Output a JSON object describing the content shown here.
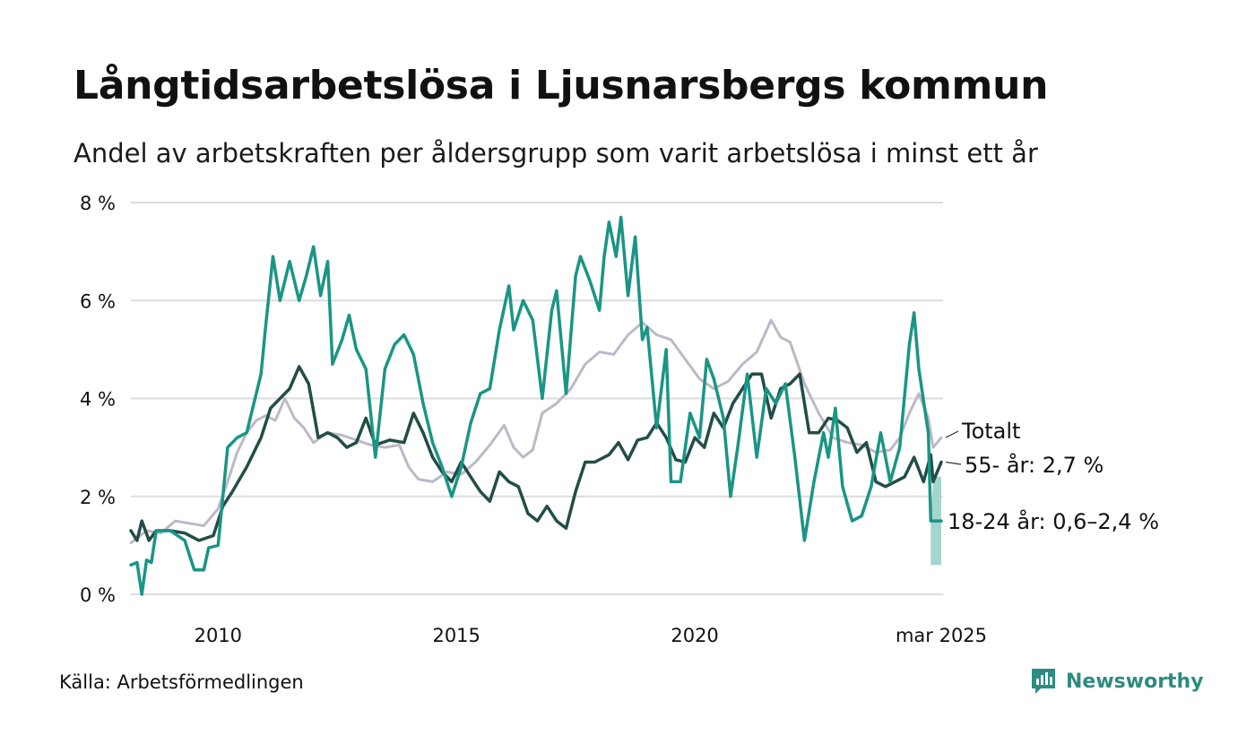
{
  "title": "Långtidsarbetslösa i Ljusnarsbergs kommun",
  "subtitle": "Andel av arbetskraften per åldersgrupp som varit arbetslösa i minst ett år",
  "source": "Källa: Arbetsförmedlingen",
  "brand": {
    "name": "Newsworthy",
    "color": "#2e8b7f",
    "icon": "newsworthy-bar-chart-icon"
  },
  "chart_data": {
    "type": "line",
    "y_range": [
      0,
      8
    ],
    "y_ticks": [
      0,
      2,
      4,
      6,
      8
    ],
    "y_tick_labels": [
      "0 %",
      "2 %",
      "4 %",
      "6 %",
      "8 %"
    ],
    "x_range": [
      2008.17,
      2025.17
    ],
    "x_ticks": [
      2010,
      2015,
      2020,
      2025.17
    ],
    "x_tick_labels": [
      "2010",
      "2015",
      "2020",
      "mar 2025"
    ],
    "grid": "horizontal",
    "series": [
      {
        "name": "Totalt",
        "label": "Totalt",
        "color": "#bdb8c9",
        "width": 3,
        "points": [
          [
            2008.17,
            1.05
          ],
          [
            2008.5,
            1.3
          ],
          [
            2008.8,
            1.25
          ],
          [
            2009.1,
            1.5
          ],
          [
            2009.4,
            1.45
          ],
          [
            2009.7,
            1.4
          ],
          [
            2010.0,
            1.75
          ],
          [
            2010.2,
            2.3
          ],
          [
            2010.4,
            2.9
          ],
          [
            2010.6,
            3.3
          ],
          [
            2010.8,
            3.55
          ],
          [
            2011.0,
            3.65
          ],
          [
            2011.2,
            3.55
          ],
          [
            2011.4,
            4.0
          ],
          [
            2011.6,
            3.6
          ],
          [
            2011.8,
            3.4
          ],
          [
            2012.0,
            3.1
          ],
          [
            2012.3,
            3.3
          ],
          [
            2012.6,
            3.25
          ],
          [
            2012.9,
            3.15
          ],
          [
            2013.2,
            3.05
          ],
          [
            2013.5,
            3.0
          ],
          [
            2013.8,
            3.05
          ],
          [
            2014.0,
            2.6
          ],
          [
            2014.2,
            2.35
          ],
          [
            2014.5,
            2.3
          ],
          [
            2014.8,
            2.5
          ],
          [
            2015.1,
            2.45
          ],
          [
            2015.4,
            2.7
          ],
          [
            2015.7,
            3.05
          ],
          [
            2016.0,
            3.45
          ],
          [
            2016.2,
            3.0
          ],
          [
            2016.4,
            2.8
          ],
          [
            2016.6,
            2.95
          ],
          [
            2016.8,
            3.7
          ],
          [
            2017.1,
            3.9
          ],
          [
            2017.4,
            4.2
          ],
          [
            2017.7,
            4.7
          ],
          [
            2018.0,
            4.95
          ],
          [
            2018.3,
            4.9
          ],
          [
            2018.6,
            5.3
          ],
          [
            2018.9,
            5.55
          ],
          [
            2019.2,
            5.3
          ],
          [
            2019.5,
            5.2
          ],
          [
            2019.8,
            4.8
          ],
          [
            2020.1,
            4.4
          ],
          [
            2020.4,
            4.2
          ],
          [
            2020.7,
            4.35
          ],
          [
            2021.0,
            4.7
          ],
          [
            2021.3,
            4.95
          ],
          [
            2021.6,
            5.6
          ],
          [
            2021.8,
            5.25
          ],
          [
            2022.0,
            5.15
          ],
          [
            2022.3,
            4.3
          ],
          [
            2022.6,
            3.7
          ],
          [
            2022.9,
            3.2
          ],
          [
            2023.2,
            3.1
          ],
          [
            2023.5,
            3.05
          ],
          [
            2023.8,
            2.9
          ],
          [
            2024.1,
            2.95
          ],
          [
            2024.3,
            3.2
          ],
          [
            2024.5,
            3.7
          ],
          [
            2024.7,
            4.1
          ],
          [
            2024.9,
            3.6
          ],
          [
            2025.0,
            3.0
          ],
          [
            2025.17,
            3.2
          ]
        ]
      },
      {
        "name": "55- år",
        "label": "55- år: 2,7 %",
        "color": "#234d47",
        "width": 3.5,
        "points": [
          [
            2008.17,
            1.3
          ],
          [
            2008.3,
            1.1
          ],
          [
            2008.4,
            1.5
          ],
          [
            2008.55,
            1.1
          ],
          [
            2008.7,
            1.3
          ],
          [
            2009.0,
            1.3
          ],
          [
            2009.3,
            1.25
          ],
          [
            2009.6,
            1.1
          ],
          [
            2009.9,
            1.2
          ],
          [
            2010.1,
            1.8
          ],
          [
            2010.3,
            2.1
          ],
          [
            2010.6,
            2.6
          ],
          [
            2010.9,
            3.2
          ],
          [
            2011.1,
            3.8
          ],
          [
            2011.3,
            4.0
          ],
          [
            2011.5,
            4.2
          ],
          [
            2011.7,
            4.65
          ],
          [
            2011.9,
            4.3
          ],
          [
            2012.1,
            3.2
          ],
          [
            2012.3,
            3.3
          ],
          [
            2012.5,
            3.2
          ],
          [
            2012.7,
            3.0
          ],
          [
            2012.9,
            3.1
          ],
          [
            2013.1,
            3.6
          ],
          [
            2013.3,
            3.05
          ],
          [
            2013.6,
            3.15
          ],
          [
            2013.9,
            3.1
          ],
          [
            2014.1,
            3.7
          ],
          [
            2014.3,
            3.3
          ],
          [
            2014.5,
            2.8
          ],
          [
            2014.7,
            2.5
          ],
          [
            2014.9,
            2.3
          ],
          [
            2015.1,
            2.7
          ],
          [
            2015.3,
            2.4
          ],
          [
            2015.5,
            2.1
          ],
          [
            2015.7,
            1.9
          ],
          [
            2015.9,
            2.5
          ],
          [
            2016.1,
            2.3
          ],
          [
            2016.3,
            2.2
          ],
          [
            2016.5,
            1.65
          ],
          [
            2016.7,
            1.5
          ],
          [
            2016.9,
            1.8
          ],
          [
            2017.1,
            1.5
          ],
          [
            2017.3,
            1.35
          ],
          [
            2017.5,
            2.1
          ],
          [
            2017.7,
            2.7
          ],
          [
            2017.9,
            2.7
          ],
          [
            2018.2,
            2.85
          ],
          [
            2018.4,
            3.1
          ],
          [
            2018.6,
            2.75
          ],
          [
            2018.8,
            3.15
          ],
          [
            2019.0,
            3.2
          ],
          [
            2019.2,
            3.5
          ],
          [
            2019.4,
            3.2
          ],
          [
            2019.6,
            2.75
          ],
          [
            2019.8,
            2.7
          ],
          [
            2020.0,
            3.2
          ],
          [
            2020.2,
            3.0
          ],
          [
            2020.4,
            3.7
          ],
          [
            2020.6,
            3.4
          ],
          [
            2020.8,
            3.9
          ],
          [
            2021.0,
            4.2
          ],
          [
            2021.2,
            4.5
          ],
          [
            2021.4,
            4.5
          ],
          [
            2021.6,
            3.6
          ],
          [
            2021.8,
            4.2
          ],
          [
            2022.0,
            4.3
          ],
          [
            2022.2,
            4.5
          ],
          [
            2022.4,
            3.3
          ],
          [
            2022.6,
            3.3
          ],
          [
            2022.8,
            3.6
          ],
          [
            2023.0,
            3.55
          ],
          [
            2023.2,
            3.4
          ],
          [
            2023.4,
            2.9
          ],
          [
            2023.6,
            3.1
          ],
          [
            2023.8,
            2.3
          ],
          [
            2024.0,
            2.2
          ],
          [
            2024.2,
            2.3
          ],
          [
            2024.4,
            2.4
          ],
          [
            2024.6,
            2.8
          ],
          [
            2024.8,
            2.3
          ],
          [
            2024.95,
            2.85
          ],
          [
            2025.0,
            2.3
          ],
          [
            2025.17,
            2.7
          ]
        ]
      },
      {
        "name": "18-24 år",
        "label": "18-24 år: 0,6–2,4 %",
        "color": "#1a9584",
        "width": 3.5,
        "points": [
          [
            2008.17,
            0.6
          ],
          [
            2008.3,
            0.65
          ],
          [
            2008.4,
            0.0
          ],
          [
            2008.5,
            0.7
          ],
          [
            2008.6,
            0.65
          ],
          [
            2008.7,
            1.3
          ],
          [
            2009.0,
            1.3
          ],
          [
            2009.3,
            1.1
          ],
          [
            2009.5,
            0.5
          ],
          [
            2009.7,
            0.5
          ],
          [
            2009.8,
            0.95
          ],
          [
            2010.0,
            1.0
          ],
          [
            2010.2,
            3.0
          ],
          [
            2010.4,
            3.2
          ],
          [
            2010.6,
            3.3
          ],
          [
            2010.9,
            4.5
          ],
          [
            2011.0,
            5.5
          ],
          [
            2011.15,
            6.9
          ],
          [
            2011.3,
            6.0
          ],
          [
            2011.5,
            6.8
          ],
          [
            2011.7,
            6.0
          ],
          [
            2011.85,
            6.5
          ],
          [
            2012.0,
            7.1
          ],
          [
            2012.15,
            6.1
          ],
          [
            2012.3,
            6.8
          ],
          [
            2012.4,
            4.7
          ],
          [
            2012.6,
            5.2
          ],
          [
            2012.75,
            5.7
          ],
          [
            2012.9,
            5.0
          ],
          [
            2013.1,
            4.6
          ],
          [
            2013.3,
            2.8
          ],
          [
            2013.5,
            4.6
          ],
          [
            2013.7,
            5.1
          ],
          [
            2013.9,
            5.3
          ],
          [
            2014.1,
            4.9
          ],
          [
            2014.3,
            3.9
          ],
          [
            2014.5,
            3.1
          ],
          [
            2014.7,
            2.6
          ],
          [
            2014.9,
            2.0
          ],
          [
            2015.1,
            2.6
          ],
          [
            2015.3,
            3.5
          ],
          [
            2015.5,
            4.1
          ],
          [
            2015.7,
            4.2
          ],
          [
            2015.9,
            5.4
          ],
          [
            2016.1,
            6.3
          ],
          [
            2016.2,
            5.4
          ],
          [
            2016.4,
            6.0
          ],
          [
            2016.6,
            5.6
          ],
          [
            2016.8,
            4.0
          ],
          [
            2017.0,
            5.8
          ],
          [
            2017.1,
            6.2
          ],
          [
            2017.3,
            4.1
          ],
          [
            2017.5,
            6.5
          ],
          [
            2017.6,
            6.9
          ],
          [
            2017.8,
            6.4
          ],
          [
            2018.0,
            5.8
          ],
          [
            2018.1,
            6.9
          ],
          [
            2018.2,
            7.6
          ],
          [
            2018.35,
            6.9
          ],
          [
            2018.45,
            7.7
          ],
          [
            2018.6,
            6.1
          ],
          [
            2018.75,
            7.3
          ],
          [
            2018.9,
            5.2
          ],
          [
            2019.0,
            5.45
          ],
          [
            2019.2,
            3.4
          ],
          [
            2019.4,
            5.0
          ],
          [
            2019.5,
            2.3
          ],
          [
            2019.7,
            2.3
          ],
          [
            2019.9,
            3.7
          ],
          [
            2020.1,
            3.2
          ],
          [
            2020.25,
            4.8
          ],
          [
            2020.4,
            4.4
          ],
          [
            2020.6,
            3.6
          ],
          [
            2020.75,
            2.0
          ],
          [
            2020.9,
            3.0
          ],
          [
            2021.1,
            4.5
          ],
          [
            2021.3,
            2.8
          ],
          [
            2021.5,
            4.2
          ],
          [
            2021.7,
            3.9
          ],
          [
            2021.9,
            4.3
          ],
          [
            2022.1,
            2.8
          ],
          [
            2022.3,
            1.1
          ],
          [
            2022.5,
            2.3
          ],
          [
            2022.7,
            3.3
          ],
          [
            2022.8,
            2.8
          ],
          [
            2022.95,
            3.8
          ],
          [
            2023.1,
            2.2
          ],
          [
            2023.3,
            1.5
          ],
          [
            2023.5,
            1.6
          ],
          [
            2023.7,
            2.2
          ],
          [
            2023.9,
            3.3
          ],
          [
            2024.1,
            2.3
          ],
          [
            2024.3,
            3.0
          ],
          [
            2024.5,
            5.1
          ],
          [
            2024.6,
            5.75
          ],
          [
            2024.7,
            4.6
          ],
          [
            2024.9,
            3.3
          ],
          [
            2024.95,
            1.5
          ],
          [
            2025.05,
            1.5
          ],
          [
            2025.17,
            1.5
          ]
        ]
      }
    ],
    "uncertainty_band": {
      "series": "18-24 år",
      "color": "#a3d5cf",
      "points": [
        [
          2024.95,
          0.6,
          1.5
        ],
        [
          2025.0,
          0.6,
          2.4
        ],
        [
          2025.17,
          0.6,
          2.4
        ]
      ]
    }
  }
}
